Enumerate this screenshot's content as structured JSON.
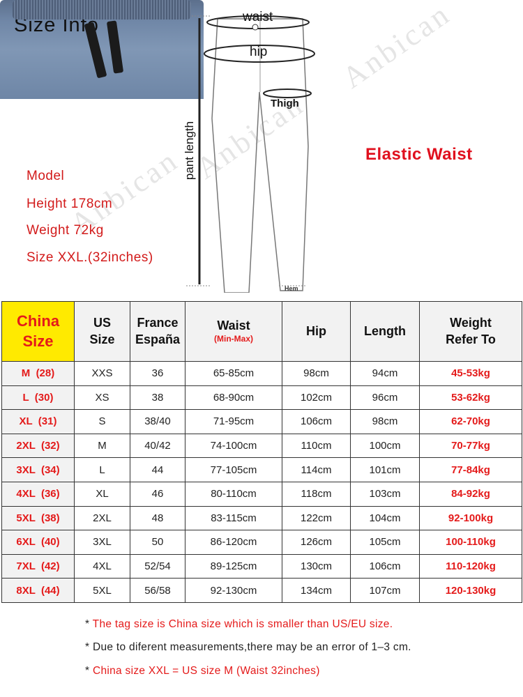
{
  "title": "Size Info",
  "diagram": {
    "waist": "waist",
    "hip": "hip",
    "thigh": "Thigh",
    "pant_length": "pant length",
    "hem": "Hem"
  },
  "watermark": "Anbican",
  "model": {
    "label": "Model",
    "height": "Height 178cm",
    "weight": "Weight 72kg",
    "size": "Size XXL.(32inches)"
  },
  "elastic_label": "Elastic Waist",
  "table": {
    "headers": [
      "China Size",
      "US Size",
      "France España",
      "Waist",
      "Hip",
      "Length",
      "Weight Refer To"
    ],
    "header_lines": {
      "china": [
        "China",
        "Size"
      ],
      "us": [
        "US",
        "Size"
      ],
      "france": [
        "France",
        "España"
      ],
      "waist_sub": "(Min-Max)",
      "weight": [
        "Weight",
        "Refer To"
      ]
    },
    "rows": [
      [
        "M  (28)",
        "XXS",
        "36",
        "65-85cm",
        "98cm",
        "94cm",
        "45-53kg"
      ],
      [
        "L  (30)",
        "XS",
        "38",
        "68-90cm",
        "102cm",
        "96cm",
        "53-62kg"
      ],
      [
        "XL  (31)",
        "S",
        "38/40",
        "71-95cm",
        "106cm",
        "98cm",
        "62-70kg"
      ],
      [
        "2XL  (32)",
        "M",
        "40/42",
        "74-100cm",
        "110cm",
        "100cm",
        "70-77kg"
      ],
      [
        "3XL  (34)",
        "L",
        "44",
        "77-105cm",
        "114cm",
        "101cm",
        "77-84kg"
      ],
      [
        "4XL  (36)",
        "XL",
        "46",
        "80-110cm",
        "118cm",
        "103cm",
        "84-92kg"
      ],
      [
        "5XL  (38)",
        "2XL",
        "48",
        "83-115cm",
        "122cm",
        "104cm",
        "92-100kg"
      ],
      [
        "6XL  (40)",
        "3XL",
        "50",
        "86-120cm",
        "126cm",
        "105cm",
        "100-110kg"
      ],
      [
        "7XL  (42)",
        "4XL",
        "52/54",
        "89-125cm",
        "130cm",
        "106cm",
        "110-120kg"
      ],
      [
        "8XL  (44)",
        "5XL",
        "56/58",
        "92-130cm",
        "134cm",
        "107cm",
        "120-130kg"
      ]
    ]
  },
  "notes": {
    "n1": "The tag size is China size which is smaller than US/EU size.",
    "n2": "Due to diferent measurements,there may be an error of 1–3 cm.",
    "n3": "China size XXL = US size M (Waist 32inches)",
    "bullet": "*"
  },
  "colors": {
    "accent_red": "#e41a1a",
    "highlight_yellow": "#ffea00",
    "header_gray": "#f2f2f2"
  }
}
